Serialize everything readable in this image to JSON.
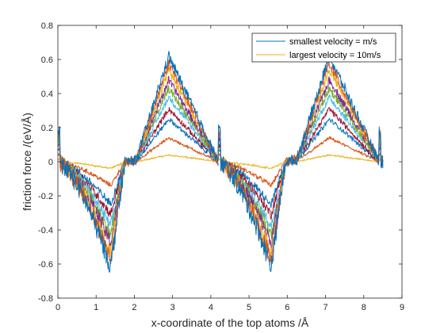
{
  "chart_data": {
    "type": "line",
    "xlabel": "x-coordinate of the top atoms /Å",
    "ylabel": "friction force /(eV/Å)",
    "xlim": [
      0,
      9
    ],
    "ylim": [
      -0.8,
      0.8
    ],
    "xticks": [
      "0",
      "1",
      "2",
      "3",
      "4",
      "5",
      "6",
      "7",
      "8",
      "9"
    ],
    "yticks": [
      "-0.8",
      "-0.6",
      "-0.4",
      "-0.2",
      "0",
      "0.2",
      "0.4",
      "0.6",
      "0.8"
    ],
    "grid": false,
    "legend_position": "top-right",
    "legend": [
      {
        "label": "smallest velocity = m/s",
        "color": "#0072BD"
      },
      {
        "label": "largest velocity = 10m/s",
        "color": "#EDB120"
      }
    ],
    "x_range": [
      0,
      8.5
    ],
    "series": [
      {
        "color": "#0072BD",
        "amplitude": 0.62
      },
      {
        "color": "#D95319",
        "amplitude": 0.58
      },
      {
        "color": "#EDB120",
        "amplitude": 0.54
      },
      {
        "color": "#7E2F8E",
        "amplitude": 0.48
      },
      {
        "color": "#77AC30",
        "amplitude": 0.43
      },
      {
        "color": "#4DBEEE",
        "amplitude": 0.38
      },
      {
        "color": "#A2142F",
        "amplitude": 0.31
      },
      {
        "color": "#0072BD",
        "amplitude": 0.25
      },
      {
        "color": "#D95319",
        "amplitude": 0.14
      },
      {
        "color": "#EDB120",
        "amplitude": 0.04
      }
    ]
  }
}
